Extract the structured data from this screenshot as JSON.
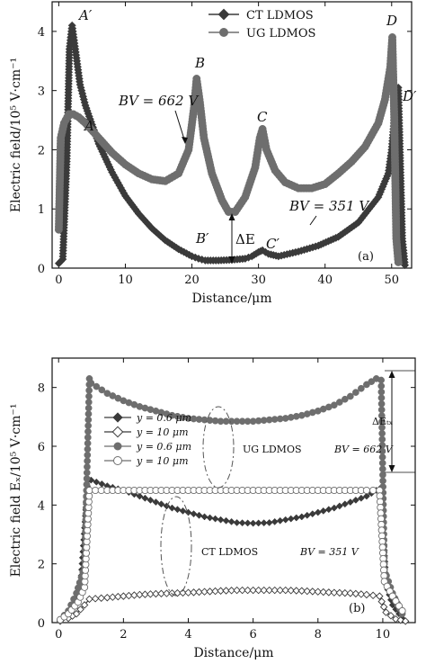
{
  "chart_data": [
    {
      "type": "line",
      "xlabel": "Distance/μm",
      "ylabel": "Electric field/10⁵ V·cm⁻¹",
      "xlim": [
        -1,
        53
      ],
      "ylim": [
        0,
        4.5
      ],
      "xticks": [
        0,
        10,
        20,
        30,
        40,
        50
      ],
      "yticks": [
        0,
        1,
        2,
        3,
        4
      ],
      "panel_label": "(a)",
      "legend_position": "top-right",
      "series": [
        {
          "name": "CT LDMOS",
          "marker": "diamond",
          "x": [
            0,
            0.6,
            1.2,
            1.6,
            2.0,
            2.6,
            3.2,
            4,
            6,
            8,
            10,
            12,
            14,
            16,
            18,
            20,
            21,
            22,
            24,
            26,
            28,
            29,
            30,
            30.6,
            31.5,
            33,
            36,
            39,
            42,
            45,
            48,
            49.5,
            50,
            50.3,
            50.6,
            51,
            51.2,
            51.6,
            52
          ],
          "y": [
            0.08,
            0.15,
            1.8,
            3.7,
            4.1,
            3.6,
            3.1,
            2.75,
            2.1,
            1.62,
            1.22,
            0.92,
            0.67,
            0.47,
            0.32,
            0.2,
            0.16,
            0.13,
            0.13,
            0.14,
            0.16,
            0.2,
            0.27,
            0.3,
            0.24,
            0.2,
            0.28,
            0.38,
            0.53,
            0.77,
            1.2,
            1.6,
            2.0,
            2.4,
            2.9,
            3.05,
            2.2,
            0.5,
            0.05
          ]
        },
        {
          "name": "UG LDMOS",
          "marker": "circle",
          "x": [
            0,
            0.3,
            0.8,
            1.5,
            2.2,
            3,
            4,
            6,
            8,
            10,
            12,
            14,
            16,
            18,
            19.5,
            20.3,
            20.7,
            21.2,
            21.8,
            23,
            24.5,
            25.5,
            26.5,
            28,
            29.5,
            30.2,
            30.6,
            31.2,
            32.5,
            34,
            36,
            38,
            40,
            42,
            44,
            46,
            48,
            49,
            49.8,
            50.1,
            50.4,
            50.7,
            51
          ],
          "y": [
            0.65,
            2.2,
            2.45,
            2.6,
            2.6,
            2.55,
            2.45,
            2.2,
            1.95,
            1.75,
            1.6,
            1.5,
            1.47,
            1.6,
            2.0,
            2.7,
            3.2,
            2.8,
            2.2,
            1.6,
            1.15,
            0.95,
            0.95,
            1.2,
            1.7,
            2.2,
            2.35,
            2.0,
            1.65,
            1.45,
            1.35,
            1.35,
            1.42,
            1.6,
            1.8,
            2.05,
            2.45,
            2.85,
            3.4,
            3.9,
            2.5,
            0.5,
            0.1
          ]
        }
      ],
      "annotations": [
        "A′",
        "A",
        "B",
        "B′",
        "C",
        "C′",
        "D",
        "D′",
        "BV = 662 V",
        "BV = 351 V",
        "ΔE"
      ]
    },
    {
      "type": "line",
      "xlabel": "Distance/μm",
      "ylabel": "Electric field Eₓ/10⁵ V·cm⁻¹",
      "xlim": [
        -0.2,
        11
      ],
      "ylim": [
        0,
        9
      ],
      "xticks": [
        0,
        2,
        4,
        6,
        8,
        10
      ],
      "yticks": [
        0,
        2,
        4,
        6,
        8
      ],
      "panel_label": "(b)",
      "legend_position": "upper-left",
      "series": [
        {
          "name": "y = 0.6 μm",
          "group": "CT LDMOS",
          "marker": "filled-diamond",
          "x": [
            0.05,
            0.3,
            0.55,
            0.7,
            0.9,
            1.0,
            1.5,
            2,
            2.5,
            3,
            3.5,
            4,
            4.5,
            5,
            5.5,
            6,
            6.5,
            7,
            7.5,
            8,
            8.5,
            9,
            9.5,
            9.8,
            9.95,
            10.1,
            10.3,
            10.6
          ],
          "y": [
            0.05,
            0.3,
            0.8,
            1.6,
            4.85,
            4.85,
            4.65,
            4.5,
            4.3,
            4.1,
            3.9,
            3.75,
            3.6,
            3.5,
            3.4,
            3.38,
            3.4,
            3.5,
            3.6,
            3.75,
            3.9,
            4.1,
            4.3,
            4.5,
            4.6,
            1.3,
            0.6,
            0.15
          ]
        },
        {
          "name": "y = 10 μm",
          "group": "CT LDMOS",
          "marker": "open-diamond",
          "x": [
            0.05,
            0.3,
            0.55,
            0.8,
            0.95,
            1.5,
            2,
            2.5,
            3,
            3.5,
            4,
            4.5,
            5,
            5.5,
            6,
            6.5,
            7,
            7.5,
            8,
            8.5,
            9,
            9.5,
            9.9,
            10.1,
            10.4,
            10.7
          ],
          "y": [
            0.05,
            0.15,
            0.3,
            0.6,
            0.8,
            0.85,
            0.9,
            0.95,
            0.98,
            1.0,
            1.02,
            1.05,
            1.08,
            1.1,
            1.1,
            1.1,
            1.1,
            1.08,
            1.05,
            1.02,
            1.0,
            0.95,
            0.9,
            0.35,
            0.12,
            0.05
          ]
        },
        {
          "name": "y = 0.6 μm",
          "group": "UG LDMOS",
          "marker": "filled-circle",
          "x": [
            0.05,
            0.3,
            0.55,
            0.8,
            0.95,
            1.0,
            1.5,
            2,
            2.5,
            3,
            3.5,
            4,
            4.5,
            5,
            5.5,
            6,
            6.5,
            7,
            7.5,
            8,
            8.5,
            9,
            9.5,
            9.8,
            9.95,
            10.05,
            10.3,
            10.6
          ],
          "y": [
            0.1,
            0.4,
            1.0,
            1.9,
            8.3,
            8.15,
            7.8,
            7.55,
            7.35,
            7.2,
            7.05,
            6.95,
            6.9,
            6.85,
            6.85,
            6.85,
            6.9,
            6.95,
            7.05,
            7.2,
            7.4,
            7.7,
            8.1,
            8.3,
            8.25,
            1.8,
            1.0,
            0.3
          ]
        },
        {
          "name": "y = 10 μm",
          "group": "UG LDMOS",
          "marker": "open-circle",
          "x": [
            0.05,
            0.3,
            0.6,
            0.8,
            0.95,
            1.5,
            2,
            2.5,
            3,
            3.5,
            4,
            4.5,
            5,
            5.5,
            6,
            6.5,
            7,
            7.5,
            8,
            8.5,
            9,
            9.5,
            9.9,
            10.05,
            10.3,
            10.6
          ],
          "y": [
            0.1,
            0.3,
            0.7,
            1.2,
            4.5,
            4.5,
            4.5,
            4.5,
            4.5,
            4.5,
            4.5,
            4.5,
            4.5,
            4.5,
            4.5,
            4.5,
            4.5,
            4.5,
            4.5,
            4.5,
            4.5,
            4.5,
            4.5,
            1.4,
            0.9,
            0.4
          ]
        }
      ],
      "annotations": [
        "UG LDMOS",
        "BV = 662 V",
        "CT LDMOS",
        "BV = 351 V",
        "ΔEₜₓ"
      ]
    }
  ],
  "text": {
    "a": {
      "xlabel": "Distance/μm",
      "ylabel": "Electric field/10⁵ V·cm⁻¹",
      "legend": [
        "CT LDMOS",
        "UG LDMOS"
      ],
      "panel": "(a)",
      "labels": {
        "A_prime": "A′",
        "A": "A",
        "B": "B",
        "B_prime": "B′",
        "C": "C",
        "C_prime": "C′",
        "D": "D",
        "D_prime": "D′",
        "dE": "ΔE"
      },
      "bv_ug": "BV = 662 V",
      "bv_ct": "BV = 351 V"
    },
    "b": {
      "xlabel": "Distance/μm",
      "ylabel": "Electric field Eₓ/10⁵ V·cm⁻¹",
      "legend": [
        "y = 0.6 μm",
        "y = 10 μm",
        "y = 0.6 μm",
        "y = 10 μm"
      ],
      "panel": "(b)",
      "ug_label": "UG LDMOS",
      "ug_bv": "BV = 662 V",
      "ct_label": "CT LDMOS",
      "ct_bv": "BV = 351 V",
      "dE": "ΔEₜₓ"
    }
  },
  "colors": {
    "ct": "#3a3a3a",
    "ug": "#6e6e6e",
    "axis": "#111111"
  }
}
